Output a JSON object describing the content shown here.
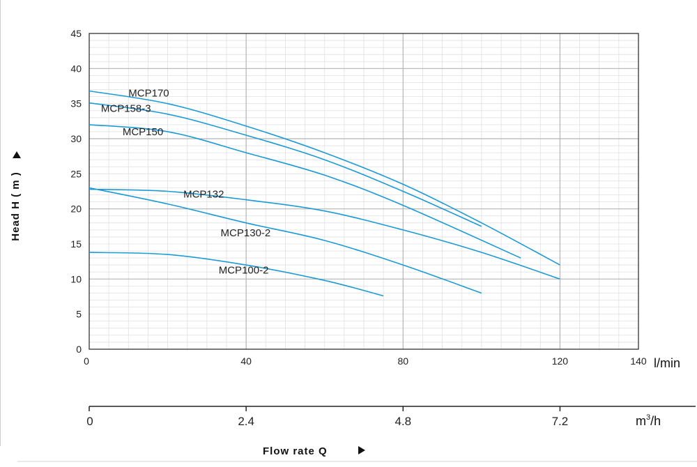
{
  "chart_data": {
    "type": "line",
    "title": "",
    "xlabel": "Flow rate Q",
    "ylabel": "Head H ( m )",
    "xlim": [
      0,
      140
    ],
    "ylim": [
      0,
      45
    ],
    "x_unit": "l/min",
    "x2_unit": "m",
    "x2_unit_sup": "3",
    "x2_unit_tail": "/h",
    "x_ticks": [
      "0",
      "40",
      "80",
      "120",
      "140"
    ],
    "x2_ticks": [
      "0",
      "2.4",
      "4.8",
      "7.2"
    ],
    "y_ticks": [
      "0",
      "5",
      "10",
      "15",
      "20",
      "25",
      "30",
      "35",
      "40",
      "45"
    ],
    "grid": true,
    "colors": {
      "curve": "#1a9ad6",
      "major_grid": "#b4b4b4",
      "minor_grid": "#e0e0e0"
    },
    "series": [
      {
        "name": "MCP170",
        "x": [
          0,
          20,
          40,
          60,
          80,
          100,
          120
        ],
        "y": [
          36.8,
          35,
          31.8,
          28,
          23.5,
          18,
          12
        ]
      },
      {
        "name": "MCP158-3",
        "x": [
          0,
          20,
          40,
          60,
          80,
          100
        ],
        "y": [
          35.1,
          33.5,
          30.5,
          27,
          22.5,
          17.5
        ]
      },
      {
        "name": "MCP150",
        "x": [
          0,
          20,
          40,
          60,
          80,
          110
        ],
        "y": [
          32,
          31,
          28,
          24.8,
          20.5,
          13
        ]
      },
      {
        "name": "MCP132",
        "x": [
          0,
          20,
          40,
          60,
          80,
          100,
          120
        ],
        "y": [
          22.8,
          22.5,
          21.3,
          19.7,
          17,
          13.8,
          10
        ]
      },
      {
        "name": "MCP130-2",
        "x": [
          0,
          20,
          40,
          60,
          80,
          100
        ],
        "y": [
          23,
          20.7,
          18,
          15.5,
          12,
          8
        ]
      },
      {
        "name": "MCP100-2",
        "x": [
          0,
          20,
          40,
          60,
          75
        ],
        "y": [
          13.8,
          13.5,
          12,
          9.8,
          7.6
        ]
      }
    ],
    "label_positions_data": [
      {
        "series": "MCP170",
        "x": 10,
        "y": 36
      },
      {
        "series": "MCP158-3",
        "x": 3,
        "y": 33.8
      },
      {
        "series": "MCP150",
        "x": 8.5,
        "y": 30.5
      },
      {
        "series": "MCP132",
        "x": 24,
        "y": 21.6
      },
      {
        "series": "MCP130-2",
        "x": 33.5,
        "y": 16.1
      },
      {
        "series": "MCP100-2",
        "x": 33,
        "y": 10.8
      }
    ]
  }
}
